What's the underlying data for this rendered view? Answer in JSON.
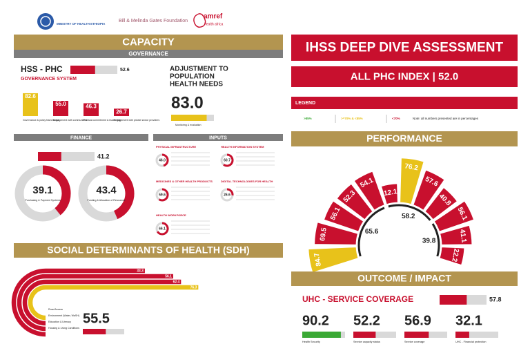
{
  "header": {
    "logos": [
      "MINISTRY OF HEALTH ETHIOPIA",
      "Bill & Melinda Gates Foundation",
      "amref",
      "health africa"
    ]
  },
  "capacity": {
    "title": "CAPACITY",
    "governance": {
      "title": "GOVERNANCE",
      "hss_label": "HSS - PHC",
      "hss_value": 52.6,
      "hss_color": "#c8102e",
      "system_label": "GOVERNANCE SYSTEM",
      "bars": [
        {
          "label": "Governance & policy frameworks",
          "value": 82.6,
          "color": "#e8c21a"
        },
        {
          "label": "Engagement with communities",
          "value": 55,
          "value_label": "55.0",
          "color": "#c8102e"
        },
        {
          "label": "Political commitment & leadership",
          "value": 46.3,
          "color": "#c8102e"
        },
        {
          "label": "Engagement with private sector providers",
          "value": 26.7,
          "color": "#c8102e"
        }
      ],
      "adjustment": {
        "title": [
          "ADJUSTMENT TO",
          "POPULATION",
          "HEALTH NEEDS"
        ],
        "value": 83,
        "value_label": "83.0",
        "label": "Monitoring & evaluation",
        "color": "#e8c21a"
      }
    },
    "finance": {
      "title": "FINANCE",
      "value": 41.2,
      "color": "#c8102e",
      "donuts": [
        {
          "label": "Purchasing & Payment Systems",
          "value": 39.1,
          "color": "#c8102e"
        },
        {
          "label": "Funding & Allocation of Resources",
          "value": 43.4,
          "color": "#c8102e"
        }
      ]
    },
    "inputs": {
      "title": "INPUTS",
      "items": [
        {
          "label": "PHYSICAL INFRASTRUCTURE",
          "value": 46,
          "value_label": "46.0",
          "color": "#c8102e"
        },
        {
          "label": "HEALTH INFORMATION SYSTEM",
          "value": 60.7,
          "color": "#c8102e"
        },
        {
          "label": "MEDICINES & OTHER HEALTH PRODUCTS",
          "value": 59.6,
          "color": "#c8102e"
        },
        {
          "label": "DIGITAL TECHNOLOGIES FOR HEALTH",
          "value": 26.6,
          "color": "#c8102e"
        },
        {
          "label": "HEALTH WORKFORCE",
          "value": 66.1,
          "color": "#c8102e"
        }
      ]
    }
  },
  "sdh": {
    "title": "SOCIAL DETERMINANTS OF HEALTH (SDH)",
    "rings": [
      {
        "label": "Road Access",
        "value": 33.3,
        "color": "#c8102e"
      },
      {
        "label": "Environment (Water, WaSH)",
        "value": 56.1,
        "color": "#c8102e"
      },
      {
        "label": "Education & Literacy",
        "value": 62.4,
        "color": "#c8102e"
      },
      {
        "label": "Housing & Living Conditions",
        "value": 76.3,
        "color": "#e8c21a"
      }
    ],
    "value": 55.5,
    "color": "#c8102e"
  },
  "assessment": {
    "title": "IHSS DEEP DIVE ASSESSMENT",
    "index_label": "ALL PHC INDEX | 52.0"
  },
  "legend": {
    "title": "LEGEND",
    "items": [
      {
        "label": ">85%",
        "color": "#3aa935"
      },
      {
        "label": ">=70% & <85%",
        "color": "#e8c21a"
      },
      {
        "label": "<70%",
        "color": "#c8102e"
      }
    ],
    "note": "Note: all numbers presented are in percentages"
  },
  "performance": {
    "title": "PERFORMANCE",
    "bars": [
      {
        "value": 84.7,
        "color": "#e8c21a"
      },
      {
        "value": 69.5,
        "color": "#c8102e"
      },
      {
        "value": 56.1,
        "color": "#c8102e"
      },
      {
        "value": 52.3,
        "color": "#c8102e"
      },
      {
        "value": 54.1,
        "color": "#c8102e"
      },
      {
        "value": 12.1,
        "color": "#c8102e"
      },
      {
        "value": 76.2,
        "color": "#e8c21a"
      },
      {
        "value": 57.6,
        "color": "#c8102e"
      },
      {
        "value": 40.8,
        "color": "#c8102e"
      },
      {
        "value": 56.1,
        "color": "#c8102e"
      },
      {
        "value": 41.1,
        "color": "#c8102e"
      },
      {
        "value": 22.2,
        "color": "#c8102e"
      }
    ],
    "groups": [
      65.6,
      58.2,
      39.8
    ]
  },
  "outcome": {
    "title": "OUTCOME / IMPACT",
    "uhc_label": "UHC - SERVICE COVERAGE",
    "uhc_value": 57.8,
    "uhc_color": "#c8102e",
    "metrics": [
      {
        "label": "Health Security",
        "value": 90.2,
        "color": "#3aa935"
      },
      {
        "label": "Service capacity status",
        "value": 52.2,
        "color": "#c8102e"
      },
      {
        "label": "Service coverage",
        "value": 56.9,
        "color": "#c8102e"
      },
      {
        "label": "UHC - Financial protection",
        "value": 32.1,
        "color": "#c8102e"
      }
    ]
  }
}
